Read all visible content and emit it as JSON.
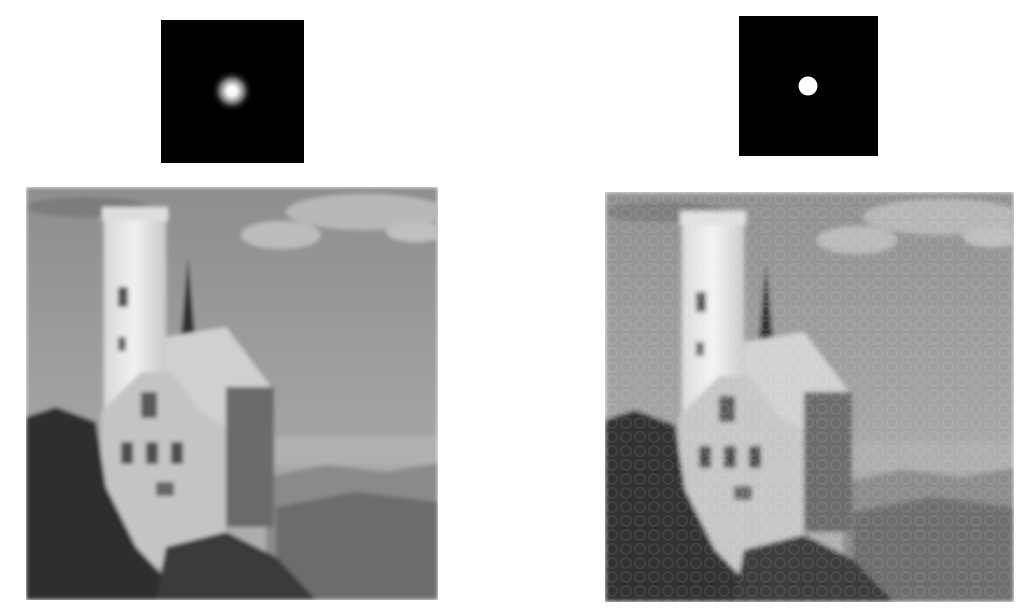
{
  "figure": {
    "panels": [
      {
        "kernel": "gaussian-lowpass-filter",
        "result": "gaussian-filtered-castle-photo"
      },
      {
        "kernel": "ideal-lowpass-filter",
        "result": "ideal-filtered-castle-photo-with-ringing"
      }
    ]
  },
  "colors": {
    "background": "#ffffff",
    "kernel_background": "#000000",
    "kernel_spot": "#ffffff",
    "sky": "#9a9a9a",
    "tower": "#e6e6e6",
    "hills": "#6e6e6e",
    "foreground": "#2e2e2e"
  }
}
